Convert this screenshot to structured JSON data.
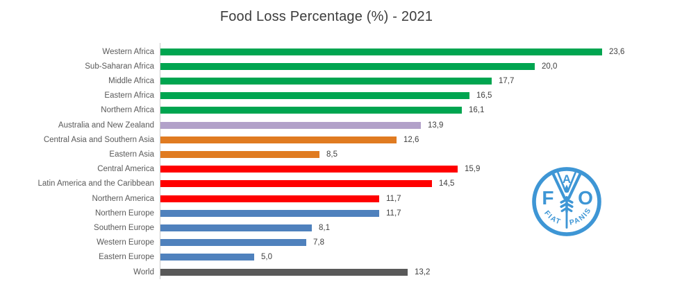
{
  "chart_data": {
    "type": "bar",
    "orientation": "horizontal",
    "title": "Food Loss Percentage (%) - 2021",
    "xlabel": "",
    "ylabel": "",
    "xlim": [
      0,
      26.3
    ],
    "grid": false,
    "legend": "none",
    "value_labels_shown": true,
    "decimal_separator": ",",
    "colors": {
      "green": "#00A550",
      "purple": "#B2A1C9",
      "orange": "#E07B21",
      "red": "#FF0000",
      "blue": "#4F81BD",
      "gray": "#595959"
    },
    "rows": [
      {
        "label": "Western Africa",
        "value": 23.6,
        "display": "23,6",
        "color_key": "green"
      },
      {
        "label": "Sub-Saharan Africa",
        "value": 20.0,
        "display": "20,0",
        "color_key": "green"
      },
      {
        "label": "Middle Africa",
        "value": 17.7,
        "display": "17,7",
        "color_key": "green"
      },
      {
        "label": "Eastern Africa",
        "value": 16.5,
        "display": "16,5",
        "color_key": "green"
      },
      {
        "label": "Northern Africa",
        "value": 16.1,
        "display": "16,1",
        "color_key": "green"
      },
      {
        "label": "Australia and New Zealand",
        "value": 13.9,
        "display": "13,9",
        "color_key": "purple"
      },
      {
        "label": "Central Asia and Southern Asia",
        "value": 12.6,
        "display": "12,6",
        "color_key": "orange"
      },
      {
        "label": "Eastern Asia",
        "value": 8.5,
        "display": "8,5",
        "color_key": "orange"
      },
      {
        "label": "Central America",
        "value": 15.9,
        "display": "15,9",
        "color_key": "red"
      },
      {
        "label": "Latin America and the Caribbean",
        "value": 14.5,
        "display": "14,5",
        "color_key": "red"
      },
      {
        "label": "Northern America",
        "value": 11.7,
        "display": "11,7",
        "color_key": "red"
      },
      {
        "label": "Northern Europe",
        "value": 11.7,
        "display": "11,7",
        "color_key": "blue"
      },
      {
        "label": "Southern Europe",
        "value": 8.1,
        "display": "8,1",
        "color_key": "blue"
      },
      {
        "label": "Western Europe",
        "value": 7.8,
        "display": "7,8",
        "color_key": "blue"
      },
      {
        "label": "Eastern Europe",
        "value": 5.0,
        "display": "5,0",
        "color_key": "blue"
      },
      {
        "label": "World",
        "value": 13.2,
        "display": "13,2",
        "color_key": "gray"
      }
    ]
  },
  "logo": {
    "org": "FAO",
    "letter_f": "F",
    "letter_a": "A",
    "letter_o": "O",
    "motto_word1": "FIAT",
    "motto_word2": "PANIS",
    "color": "#3E96D5"
  }
}
